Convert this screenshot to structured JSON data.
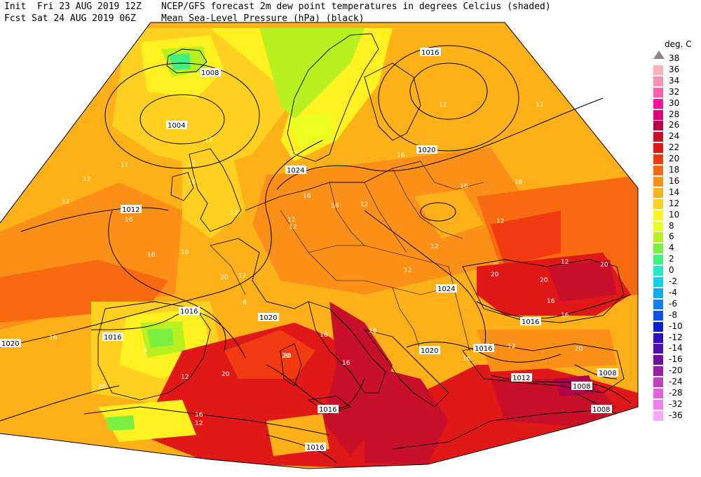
{
  "header": {
    "line1_left": "Init  Fri 23 AUG 2019 12Z",
    "line2_left": "Fcst Sat 24 AUG 2019 06Z",
    "line1_right": "NCEP/GFS forecast 2m dew point temperatures in degrees Celcius (shaded)",
    "line2_right": "Mean Sea-Level Pressure (hPa) (black)"
  },
  "legend": {
    "title": "deg. C",
    "entries": [
      {
        "label": "38",
        "color": "#b0b0b0"
      },
      {
        "label": "36",
        "color": "#ffb0b8"
      },
      {
        "label": "34",
        "color": "#ff8fb0"
      },
      {
        "label": "32",
        "color": "#ff5fa8"
      },
      {
        "label": "30",
        "color": "#ff10a0"
      },
      {
        "label": "28",
        "color": "#e0007a"
      },
      {
        "label": "26",
        "color": "#b0004a"
      },
      {
        "label": "24",
        "color": "#c8102a"
      },
      {
        "label": "22",
        "color": "#e01818"
      },
      {
        "label": "20",
        "color": "#f23a10"
      },
      {
        "label": "18",
        "color": "#f86a10"
      },
      {
        "label": "16",
        "color": "#fb9018"
      },
      {
        "label": "14",
        "color": "#fdb018"
      },
      {
        "label": "12",
        "color": "#ffd020"
      },
      {
        "label": "10",
        "color": "#fff020"
      },
      {
        "label": "8",
        "color": "#eaff20"
      },
      {
        "label": "6",
        "color": "#b8f020"
      },
      {
        "label": "4",
        "color": "#7cf040"
      },
      {
        "label": "2",
        "color": "#40f080"
      },
      {
        "label": "0",
        "color": "#20e8c8"
      },
      {
        "label": "-2",
        "color": "#10d0f0"
      },
      {
        "label": "-4",
        "color": "#10a8f0"
      },
      {
        "label": "-6",
        "color": "#1080f0"
      },
      {
        "label": "-8",
        "color": "#1050e8"
      },
      {
        "label": "-10",
        "color": "#1020d0"
      },
      {
        "label": "-12",
        "color": "#3010c0"
      },
      {
        "label": "-14",
        "color": "#5010b0"
      },
      {
        "label": "-16",
        "color": "#7010a0"
      },
      {
        "label": "-20",
        "color": "#9820a8"
      },
      {
        "label": "-24",
        "color": "#c040c0"
      },
      {
        "label": "-28",
        "color": "#e060e0"
      },
      {
        "label": "-32",
        "color": "#f080f0"
      },
      {
        "label": "-36",
        "color": "#f8a8f8"
      }
    ]
  },
  "isobar_labels": [
    {
      "text": "1016",
      "id": "iso-scandi-high"
    },
    {
      "text": "1008",
      "id": "iso-iceland-a"
    },
    {
      "text": "1004",
      "id": "iso-iceland-low"
    },
    {
      "text": "1012",
      "id": "iso-atlantic-1012"
    },
    {
      "text": "1020",
      "id": "iso-baltic-1020"
    },
    {
      "text": "1024",
      "id": "iso-northsea-1024"
    },
    {
      "text": "1024",
      "id": "iso-balkans-1024"
    },
    {
      "text": "1016",
      "id": "iso-iberia-1016a"
    },
    {
      "text": "1020",
      "id": "iso-atlantic-1020"
    },
    {
      "text": "1016",
      "id": "iso-biscay-1016"
    },
    {
      "text": "1020",
      "id": "iso-france-1020"
    },
    {
      "text": "1016",
      "id": "iso-tunisia-1016"
    },
    {
      "text": "1016",
      "id": "iso-libya-1016"
    },
    {
      "text": "1020",
      "id": "iso-greece-1020"
    },
    {
      "text": "1016",
      "id": "iso-aegean-1016"
    },
    {
      "text": "1016",
      "id": "iso-blacksea-1016"
    },
    {
      "text": "1012",
      "id": "iso-turkey-1012"
    },
    {
      "text": "1008",
      "id": "iso-east-1008a"
    },
    {
      "text": "1008",
      "id": "iso-east-1008b"
    },
    {
      "text": "1008",
      "id": "iso-east-1008c"
    }
  ],
  "dew_labels": [
    "12",
    "12",
    "12",
    "12",
    "16",
    "12",
    "16",
    "12",
    "16",
    "16",
    "20",
    "12",
    "16",
    "20",
    "20",
    "12",
    "16",
    "12",
    "16",
    "12",
    "12",
    "8",
    "4",
    "16",
    "20",
    "16",
    "12",
    "16",
    "20",
    "12",
    "16",
    "12",
    "16",
    "20",
    "16",
    "12",
    "12",
    "20",
    "16",
    "20",
    "12",
    "16",
    "16",
    "12",
    "20",
    "12",
    "16",
    "12"
  ]
}
